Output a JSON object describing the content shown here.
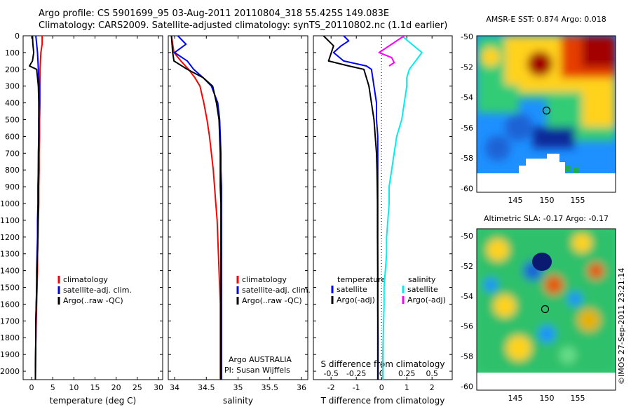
{
  "header": {
    "line1": "Argo profile: CS 5901699_95 03-Aug-2011 20110804_318 55.425S 149.083E",
    "line2": "Climatology: CARS2009. Satellite-adjusted climatology: synTS_20110802.nc (1.1d earlier)"
  },
  "depth_ticks": [
    "0",
    "100",
    "200",
    "300",
    "400",
    "500",
    "600",
    "700",
    "800",
    "900",
    "1000",
    "1100",
    "1200",
    "1300",
    "1400",
    "1500",
    "1600",
    "1700",
    "1800",
    "1900",
    "2000"
  ],
  "colors": {
    "climatology": "#ff0000",
    "satellite": "#0000ff",
    "argo": "#000000",
    "sal_sat": "#00eeee",
    "sal_argo": "#ff00ff"
  },
  "panel1": {
    "xlabel": "temperature (deg C)",
    "xticks": [
      "0",
      "5",
      "10",
      "15",
      "20",
      "25",
      "30"
    ],
    "legend": [
      "climatology",
      "satellite-adj. clim.",
      "Argo(..raw -QC)"
    ]
  },
  "panel2": {
    "xlabel": "salinity",
    "xticks": [
      "34",
      "34.5",
      "35",
      "35.5",
      "36"
    ],
    "legend": [
      "climatology",
      "satellite-adj. clim.",
      "Argo(..raw -QC)"
    ],
    "note1": "Argo AUSTRALIA",
    "note2": "PI: Susan Wijffels"
  },
  "panel3": {
    "xlabel": "T difference from climatology",
    "xlabel_top": "S difference from climatology",
    "xticks_t": [
      "-2",
      "-1",
      "0",
      "1",
      "2"
    ],
    "xticks_s": [
      "-0.5",
      "-0.25",
      "0",
      "0.25",
      "0.5"
    ],
    "legend_t_head": "temperature",
    "legend_t": [
      "satellite",
      "Argo(-adj)"
    ],
    "legend_s_head": "salinity",
    "legend_s": [
      "satellite",
      "Argo(-adj)"
    ]
  },
  "map1": {
    "title": "AMSR-E SST: 0.874 Argo: 0.018",
    "yticks": [
      "-50",
      "-52",
      "-54",
      "-56",
      "-58",
      "-60"
    ],
    "xticks": [
      "145",
      "150",
      "155"
    ]
  },
  "map2": {
    "title": "Altimetric SLA: -0.17 Argo: -0.17",
    "yticks": [
      "-50",
      "-52",
      "-54",
      "-56",
      "-58",
      "-60"
    ],
    "xticks": [
      "145",
      "150",
      "155"
    ]
  },
  "stamp": "©IMOS 27-Sep-2011 23:21:14",
  "chart_data": [
    {
      "type": "line",
      "xlabel": "temperature (deg C)",
      "ylabel": "",
      "xlim": [
        -2,
        31
      ],
      "ylim": [
        2050,
        0
      ],
      "series": [
        {
          "name": "climatology",
          "x": [
            2.5,
            2.5,
            2.2,
            2.0,
            2.0,
            2.0,
            1.9,
            1.9,
            1.8,
            1.8,
            1.7,
            1.7,
            1.6,
            1.5,
            1.4,
            1.4,
            1.3,
            1.2,
            1.1,
            1.0,
            0.9
          ],
          "y": [
            0,
            50,
            100,
            200,
            300,
            400,
            500,
            600,
            700,
            800,
            900,
            1000,
            1100,
            1200,
            1300,
            1400,
            1500,
            1600,
            1700,
            1800,
            2050
          ]
        },
        {
          "name": "satellite-adj. clim.",
          "x": [
            1.0,
            1.2,
            1.4,
            1.6,
            1.8,
            1.8,
            1.7,
            1.7,
            1.6,
            1.6,
            1.5,
            1.5,
            1.4,
            1.4,
            1.3,
            1.2,
            1.2,
            1.1,
            1.0,
            1.0,
            0.9
          ],
          "y": [
            0,
            50,
            100,
            200,
            300,
            400,
            500,
            600,
            700,
            800,
            900,
            1000,
            1100,
            1200,
            1300,
            1400,
            1500,
            1600,
            1700,
            1800,
            2050
          ]
        },
        {
          "name": "Argo(..raw -QC)",
          "x": [
            0.2,
            0.3,
            0.5,
            0.2,
            -0.5,
            1.2,
            1.4,
            1.6,
            1.7,
            1.7,
            1.6,
            1.6,
            1.5,
            1.5,
            1.4,
            1.3,
            1.2,
            1.1,
            1.0,
            1.0,
            0.9,
            0.9
          ],
          "y": [
            0,
            50,
            100,
            150,
            180,
            200,
            250,
            300,
            400,
            600,
            800,
            1000,
            1100,
            1200,
            1300,
            1400,
            1500,
            1600,
            1700,
            1800,
            1950,
            2050
          ]
        }
      ]
    },
    {
      "type": "line",
      "xlabel": "salinity",
      "ylabel": "",
      "xlim": [
        33.9,
        36.1
      ],
      "ylim": [
        2050,
        0
      ],
      "series": [
        {
          "name": "climatology",
          "x": [
            33.95,
            33.97,
            33.99,
            34.1,
            34.22,
            34.32,
            34.4,
            34.46,
            34.51,
            34.55,
            34.58,
            34.61,
            34.63,
            34.65,
            34.67,
            34.68,
            34.69,
            34.7,
            34.71,
            34.72,
            34.72,
            34.72
          ],
          "y": [
            0,
            50,
            100,
            150,
            200,
            250,
            300,
            400,
            500,
            600,
            700,
            800,
            900,
            1000,
            1100,
            1200,
            1300,
            1400,
            1500,
            1600,
            1800,
            2050
          ]
        },
        {
          "name": "satellite-adj. clim.",
          "x": [
            34.05,
            34.18,
            34.0,
            34.2,
            34.3,
            34.45,
            34.58,
            34.68,
            34.71,
            34.72,
            34.73,
            34.73,
            34.74,
            34.74,
            34.74,
            34.74,
            34.74,
            34.74,
            34.74,
            34.74,
            34.74
          ],
          "y": [
            0,
            50,
            100,
            150,
            200,
            250,
            300,
            400,
            500,
            600,
            700,
            800,
            900,
            1000,
            1100,
            1200,
            1300,
            1400,
            1500,
            1600,
            2050
          ]
        },
        {
          "name": "Argo(..raw -QC)",
          "x": [
            33.95,
            33.96,
            33.97,
            33.99,
            34.2,
            34.45,
            34.6,
            34.66,
            34.7,
            34.71,
            34.72,
            34.72,
            34.72,
            34.73,
            34.73,
            34.73,
            34.73,
            34.73,
            34.73,
            34.73
          ],
          "y": [
            0,
            50,
            100,
            150,
            200,
            250,
            300,
            400,
            500,
            600,
            700,
            800,
            900,
            1000,
            1100,
            1200,
            1300,
            1400,
            1600,
            2050
          ]
        }
      ]
    },
    {
      "type": "line",
      "xlabel": "T difference from climatology",
      "ylabel": "",
      "xlim": [
        -2.7,
        2.8
      ],
      "ylim": [
        2050,
        0
      ],
      "series": [
        {
          "name": "temperature satellite",
          "x": [
            -1.5,
            -1.3,
            -1.6,
            -1.9,
            -1.5,
            -0.6,
            -0.4,
            -0.3,
            -0.2,
            -0.2,
            -0.15,
            -0.15,
            -0.15,
            -0.15,
            -0.15,
            -0.15,
            -0.15,
            -0.15,
            -0.15,
            -0.15,
            -0.15,
            -0.15
          ],
          "y": [
            0,
            30,
            60,
            100,
            150,
            180,
            200,
            300,
            400,
            500,
            600,
            700,
            800,
            900,
            1000,
            1200,
            1400,
            1600,
            1800,
            1900,
            2000,
            2050
          ]
        },
        {
          "name": "temperature Argo(-adj)",
          "x": [
            -2.3,
            -1.9,
            -2.1,
            -1.3,
            -0.7,
            -0.5,
            -0.4,
            -0.3,
            -0.25,
            -0.2,
            -0.18,
            -0.17,
            -0.16,
            -0.16,
            -0.15,
            -0.15,
            -0.14,
            -0.14,
            -0.14
          ],
          "y": [
            0,
            60,
            150,
            180,
            200,
            300,
            400,
            500,
            600,
            700,
            800,
            900,
            1000,
            1200,
            1400,
            1600,
            1800,
            2000,
            2050
          ]
        },
        {
          "name": "salinity satellite",
          "x": [
            0.8,
            1.2,
            1.6,
            1.1,
            1.0,
            1.0,
            0.9,
            0.8,
            0.6,
            0.5,
            0.4,
            0.3,
            0.3,
            0.2,
            0.2,
            0.15,
            0.1,
            0.1,
            0.05,
            0.05
          ],
          "y": [
            0,
            50,
            100,
            200,
            250,
            300,
            400,
            500,
            600,
            700,
            800,
            900,
            1000,
            1200,
            1300,
            1400,
            1500,
            1600,
            1900,
            2050
          ]
        },
        {
          "name": "salinity Argo(-adj)",
          "x": [
            0.9,
            0.4,
            -0.1,
            0.4,
            0.5,
            0.3
          ],
          "y": [
            0,
            50,
            100,
            130,
            160,
            180
          ]
        }
      ]
    }
  ]
}
